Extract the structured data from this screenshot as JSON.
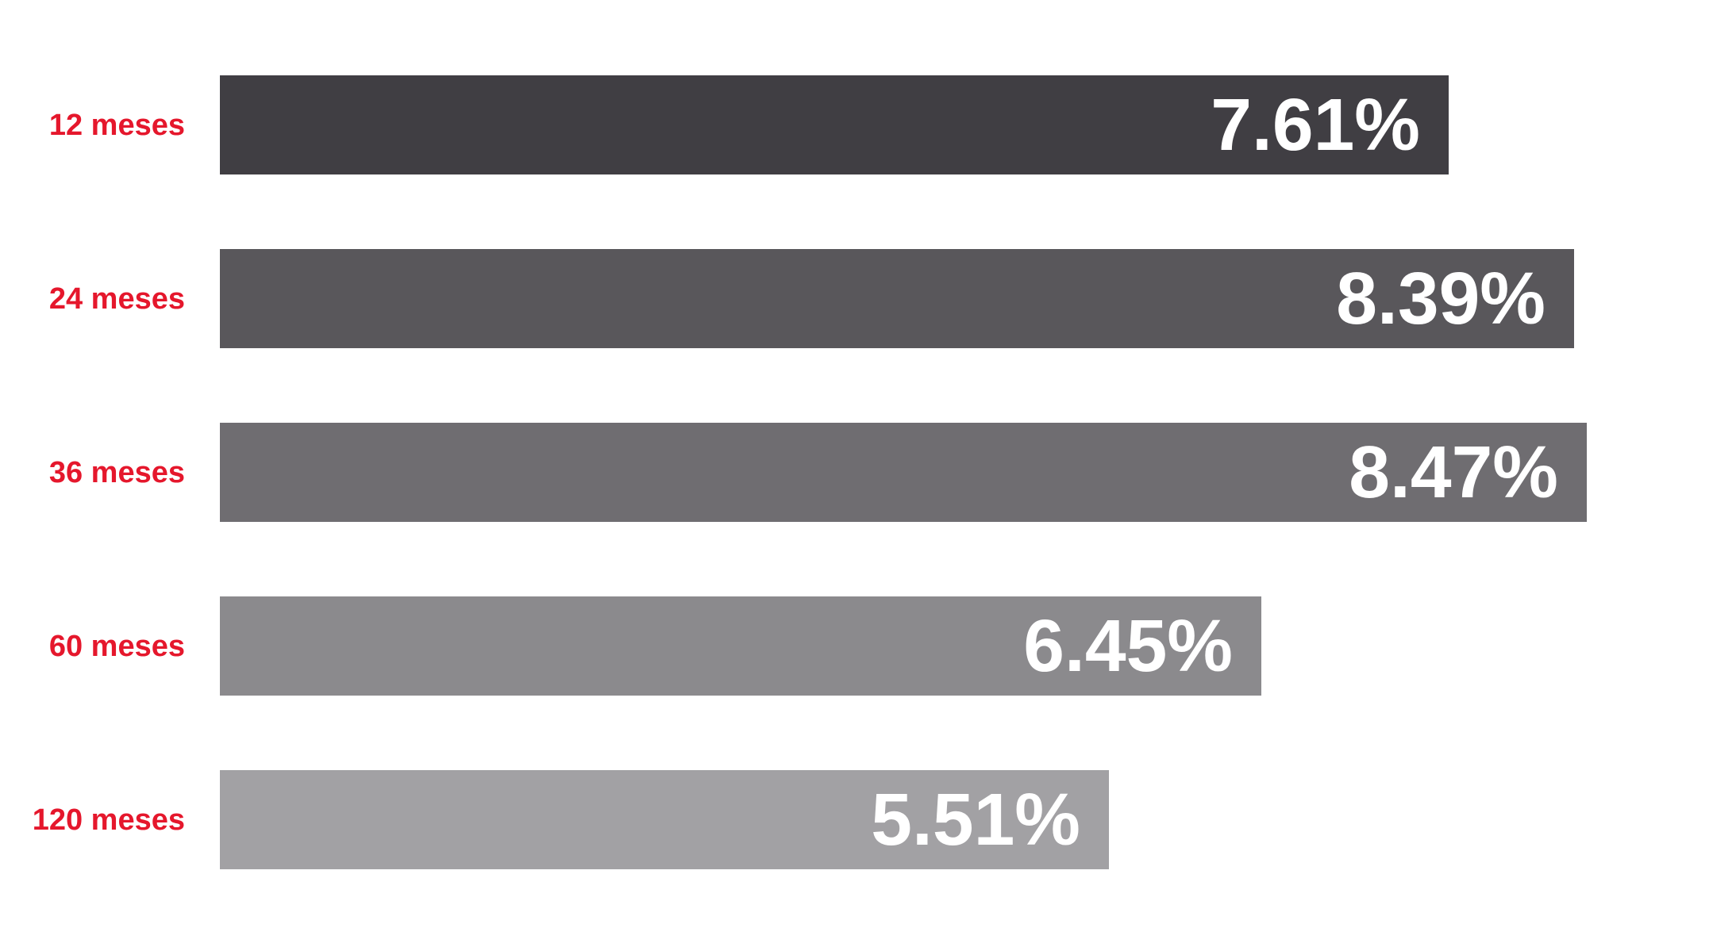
{
  "chart_data": {
    "type": "bar",
    "orientation": "horizontal",
    "title": "",
    "xlabel": "",
    "ylabel": "",
    "categories": [
      "12 meses",
      "24 meses",
      "36 meses",
      "60 meses",
      "120 meses"
    ],
    "values": [
      7.61,
      8.39,
      8.47,
      6.45,
      5.51
    ],
    "value_labels": [
      "7.61%",
      "8.39%",
      "8.47%",
      "6.45%",
      "5.51%"
    ],
    "xlim": [
      0,
      9.25
    ],
    "grid": false,
    "legend": false,
    "bar_colors": [
      "#403e43",
      "#59575b",
      "#6f6d71",
      "#8b8a8d",
      "#a2a1a4"
    ],
    "category_label_color": "#e5172c",
    "value_label_color": "#ffffff",
    "background_color": "#ffffff"
  }
}
